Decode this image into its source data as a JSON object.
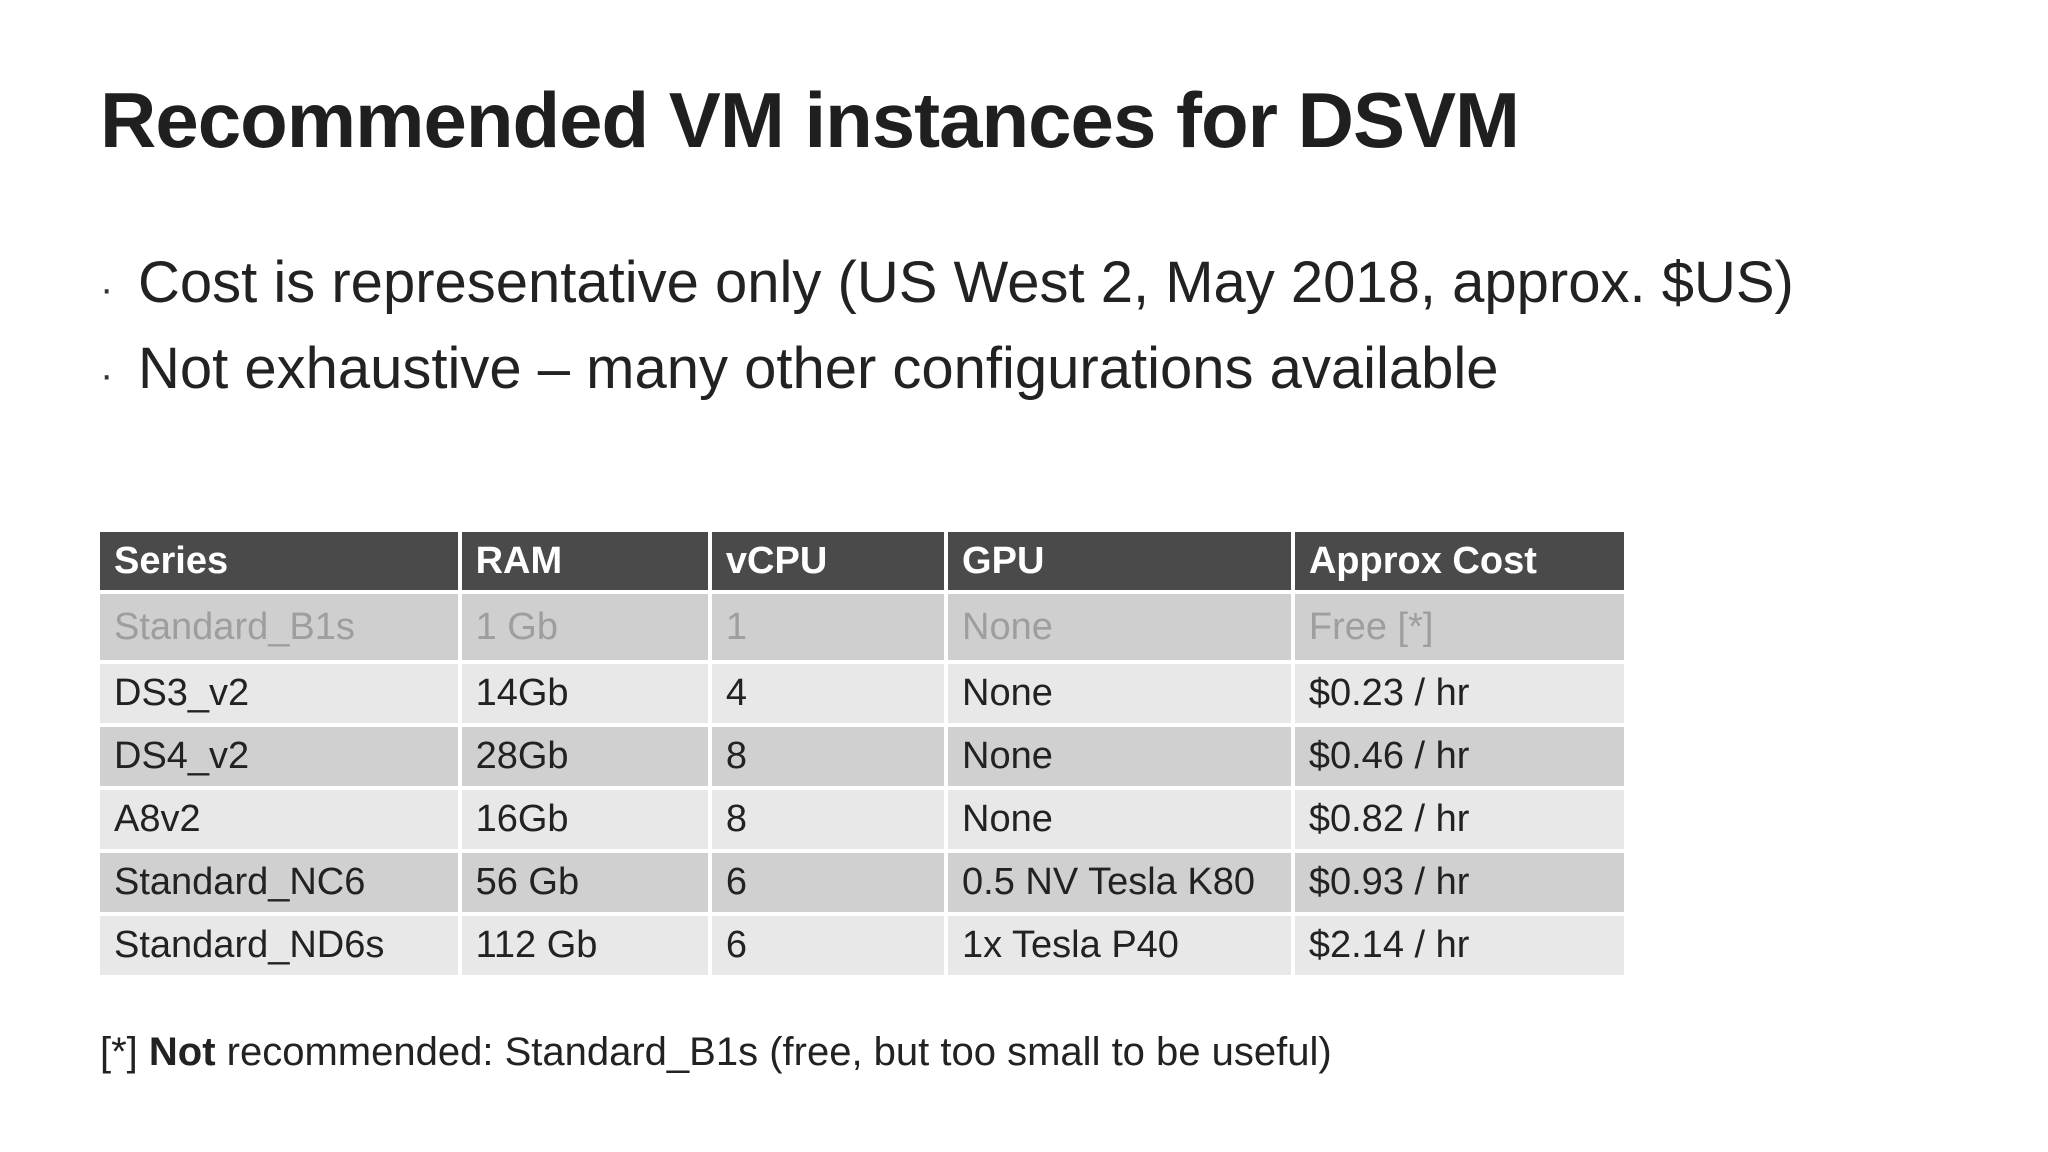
{
  "title": "Recommended VM instances for DSVM",
  "bullets": [
    "Cost is representative only (US West 2, May 2018, approx. $US)",
    "Not exhaustive – many other configurations available"
  ],
  "table": {
    "headers": [
      "Series",
      "RAM",
      "vCPU",
      "GPU",
      "Approx Cost"
    ],
    "rows": [
      [
        "Standard_B1s",
        "1 Gb",
        "1",
        "None",
        "Free [*]"
      ],
      [
        "DS3_v2",
        "14Gb",
        "4",
        "None",
        "$0.23 / hr"
      ],
      [
        "DS4_v2",
        "28Gb",
        "8",
        "None",
        "$0.46 / hr"
      ],
      [
        "A8v2",
        "16Gb",
        "8",
        "None",
        "$0.82 / hr"
      ],
      [
        "Standard_NC6",
        "56 Gb",
        "6",
        "0.5 NV Tesla K80",
        "$0.93 / hr"
      ],
      [
        "Standard_ND6s",
        "112 Gb",
        "6",
        "1x Tesla P40",
        "$2.14 / hr"
      ]
    ]
  },
  "footnote": {
    "prefix": "[*] ",
    "emphasis": "Not",
    "rest": " recommended: Standard_B1s (free, but too small to be useful)"
  },
  "colors": {
    "header_bg": "#4a4a4a",
    "row_light": "#e8e8e8",
    "row_dark": "#d0d0d0",
    "muted_text": "#9e9e9e"
  }
}
